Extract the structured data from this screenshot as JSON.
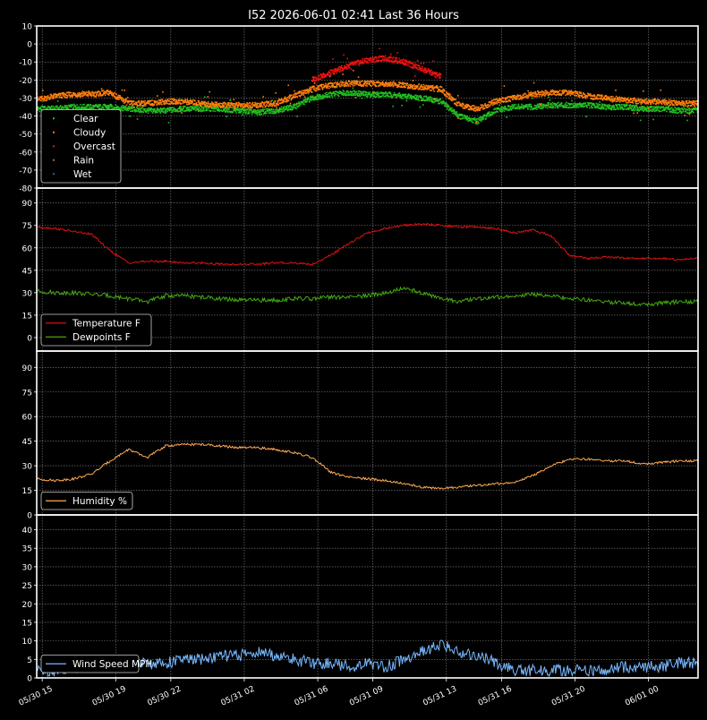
{
  "title": "I52 2026-06-01 02:41 Last 36 Hours",
  "colors": {
    "background": "#000000",
    "frame": "#ffffff",
    "grid": "#888888",
    "text": "#ffffff"
  },
  "chart_data": [
    {
      "type": "scatter",
      "ylim": [
        -80,
        10
      ],
      "yticks": [
        10,
        0,
        -10,
        -20,
        -30,
        -40,
        -50,
        -60,
        -70,
        -80
      ],
      "legend_position": "lower-left",
      "legend": [
        {
          "label": "Clear",
          "color": "#22c022"
        },
        {
          "label": "Cloudy",
          "color": "#ff7f0e"
        },
        {
          "label": "Overcast",
          "color": "#ee1111"
        },
        {
          "label": "Rain",
          "color": "#9b7040"
        },
        {
          "label": "Wet",
          "color": "#1f5fd0"
        }
      ],
      "series": [
        {
          "name": "Clear",
          "color": "#22c022",
          "x": [
            0,
            1,
            2,
            3,
            4,
            5,
            6,
            7,
            8,
            9,
            10,
            11,
            12,
            13,
            14,
            15,
            16,
            17,
            18,
            19,
            20,
            21,
            22,
            23,
            24,
            25,
            26,
            27,
            28,
            29,
            30,
            31,
            32,
            33,
            34,
            35,
            36
          ],
          "y": [
            -36,
            -36,
            -35,
            -35,
            -35,
            -36,
            -37,
            -37,
            -36,
            -36,
            -36,
            -37,
            -38,
            -37,
            -35,
            -30,
            -28,
            -27,
            -28,
            -28,
            -29,
            -30,
            -32,
            -40,
            -43,
            -37,
            -35,
            -35,
            -34,
            -34,
            -34,
            -35,
            -35,
            -36,
            -36,
            -37,
            -37
          ]
        },
        {
          "name": "Cloudy",
          "color": "#ff7f0e",
          "x": [
            0,
            1,
            2,
            3,
            4,
            5,
            6,
            7,
            8,
            9,
            10,
            11,
            12,
            13,
            14,
            15,
            16,
            17,
            18,
            19,
            20,
            21,
            22,
            23,
            24,
            25,
            26,
            27,
            28,
            29,
            30,
            31,
            32,
            33,
            34,
            35,
            36
          ],
          "y": [
            -31,
            -29,
            -28,
            -28,
            -27,
            -33,
            -33,
            -32,
            -32,
            -33,
            -34,
            -34,
            -34,
            -33,
            -29,
            -25,
            -23,
            -22,
            -22,
            -22,
            -23,
            -24,
            -25,
            -34,
            -36,
            -32,
            -30,
            -28,
            -27,
            -27,
            -29,
            -30,
            -31,
            -32,
            -32,
            -33,
            -33
          ]
        },
        {
          "name": "Overcast",
          "color": "#ee1111",
          "x": [
            15,
            16,
            17,
            18,
            19,
            20,
            21,
            22
          ],
          "y": [
            -20,
            -16,
            -12,
            -9,
            -8,
            -10,
            -14,
            -18
          ]
        }
      ]
    },
    {
      "type": "line",
      "ylim": [
        -9,
        100
      ],
      "yticks": [
        90,
        75,
        60,
        45,
        30,
        15,
        0
      ],
      "legend_position": "lower-left",
      "x": [
        0,
        1,
        2,
        3,
        4,
        5,
        6,
        7,
        8,
        9,
        10,
        11,
        12,
        13,
        14,
        15,
        16,
        17,
        18,
        19,
        20,
        21,
        22,
        23,
        24,
        25,
        26,
        27,
        28,
        29,
        30,
        31,
        32,
        33,
        34,
        35,
        36
      ],
      "series": [
        {
          "name": "Temperature F",
          "color": "#dd1111",
          "values": [
            74,
            73,
            71,
            69,
            58,
            50,
            51,
            51,
            50,
            50,
            49,
            49,
            49,
            50,
            50,
            49,
            55,
            63,
            70,
            73,
            75,
            76,
            75,
            74,
            74,
            73,
            70,
            72,
            68,
            55,
            53,
            54,
            53,
            53,
            53,
            52,
            53
          ]
        },
        {
          "name": "Dewpoints F",
          "color": "#44aa11",
          "values": [
            31,
            30,
            30,
            29,
            28,
            26,
            24,
            28,
            28,
            27,
            26,
            25,
            25,
            25,
            26,
            26,
            27,
            27,
            28,
            30,
            33,
            30,
            26,
            24,
            26,
            27,
            28,
            29,
            28,
            26,
            25,
            24,
            23,
            22,
            23,
            24,
            24
          ]
        }
      ]
    },
    {
      "type": "line",
      "ylim": [
        0,
        100
      ],
      "yticks": [
        90,
        75,
        60,
        45,
        30,
        15,
        0
      ],
      "legend_position": "lower-left",
      "x": [
        0,
        1,
        2,
        3,
        4,
        5,
        6,
        7,
        8,
        9,
        10,
        11,
        12,
        13,
        14,
        15,
        16,
        17,
        18,
        19,
        20,
        21,
        22,
        23,
        24,
        25,
        26,
        27,
        28,
        29,
        30,
        31,
        32,
        33,
        34,
        35,
        36
      ],
      "series": [
        {
          "name": "Humidity %",
          "color": "#ffaa55",
          "values": [
            22,
            21,
            22,
            25,
            33,
            40,
            35,
            42,
            43,
            43,
            42,
            41,
            41,
            40,
            38,
            35,
            26,
            23,
            22,
            21,
            19,
            17,
            16,
            17,
            18,
            19,
            20,
            24,
            30,
            34,
            34,
            33,
            33,
            31,
            32,
            33,
            33
          ]
        }
      ]
    },
    {
      "type": "line",
      "ylim": [
        0,
        44
      ],
      "yticks": [
        40,
        35,
        30,
        25,
        20,
        15,
        10,
        5,
        0
      ],
      "legend_position": "lower-left",
      "x": [
        0,
        1,
        2,
        3,
        4,
        5,
        6,
        7,
        8,
        9,
        10,
        11,
        12,
        13,
        14,
        15,
        16,
        17,
        18,
        19,
        20,
        21,
        22,
        23,
        24,
        25,
        26,
        27,
        28,
        29,
        30,
        31,
        32,
        33,
        34,
        35,
        36
      ],
      "series": [
        {
          "name": "Wind Speed MPH",
          "color": "#77b8ff",
          "values": [
            2,
            2,
            3,
            3,
            3,
            4,
            4,
            4,
            5,
            5,
            6,
            6,
            7,
            6,
            5,
            4,
            4,
            3,
            4,
            3,
            5,
            7,
            9,
            7,
            6,
            4,
            2,
            2,
            2,
            2,
            2,
            2,
            3,
            3,
            3,
            4,
            4
          ]
        }
      ]
    }
  ],
  "x_axis": {
    "type": "time",
    "range": [
      "05/30 14:41",
      "06/01 02:41"
    ],
    "ticks": [
      {
        "label": "05/30 15",
        "x": 0.3
      },
      {
        "label": "05/30 19",
        "x": 4.3
      },
      {
        "label": "05/30 22",
        "x": 7.3
      },
      {
        "label": "05/31 02",
        "x": 11.3
      },
      {
        "label": "05/31 06",
        "x": 15.3
      },
      {
        "label": "05/31 09",
        "x": 18.3
      },
      {
        "label": "05/31 13",
        "x": 22.3
      },
      {
        "label": "05/31 16",
        "x": 25.3
      },
      {
        "label": "05/31 20",
        "x": 29.3
      },
      {
        "label": "06/01 00",
        "x": 33.3
      }
    ]
  }
}
